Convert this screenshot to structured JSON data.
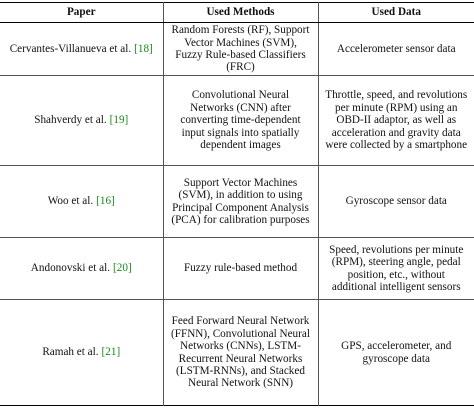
{
  "table": {
    "header": [
      "Paper",
      "Used Methods",
      "Used Data"
    ],
    "rows": [
      [
        {
          "name": "Cervantes-Villanueva et al.",
          "ref": "[18]"
        },
        "Random Forests (RF), Support Vector Machines (SVM), Fuzzy Rule-based Classifiers (FRC)",
        "Accelerometer sensor data"
      ],
      [
        {
          "name": "Shahverdy et al.",
          "ref": "[19]"
        },
        "Convolutional Neural Networks (CNN) after converting time-dependent input signals into spatially dependent images",
        "Throttle, speed, and revolutions per minute (RPM) using an OBD-II adaptor, as well as acceleration and gravity data were collected by a smartphone"
      ],
      [
        {
          "name": "Woo et al.",
          "ref": "[16]"
        },
        "Support Vector Machines (SVM), in addition to using Principal Component Analysis (PCA) for calibration purposes",
        "Gyroscope sensor data"
      ],
      [
        {
          "name": "Andonovski et al.",
          "ref": "[20]"
        },
        "Fuzzy rule-based method",
        "Speed, revolutions per minute (RPM), steering angle, pedal position, etc., without additional intelligent sensors"
      ],
      [
        {
          "name": "Ramah et al.",
          "ref": "[21]"
        },
        "Feed Forward Neural Network (FFNN), Convolutional Neural Networks (CNNs), LSTM-Recurrent Neural Networks (LSTM-RNNs), and Stacked Neural Network (SNN)",
        "GPS, accelerometer, and gyroscope data"
      ]
    ]
  }
}
